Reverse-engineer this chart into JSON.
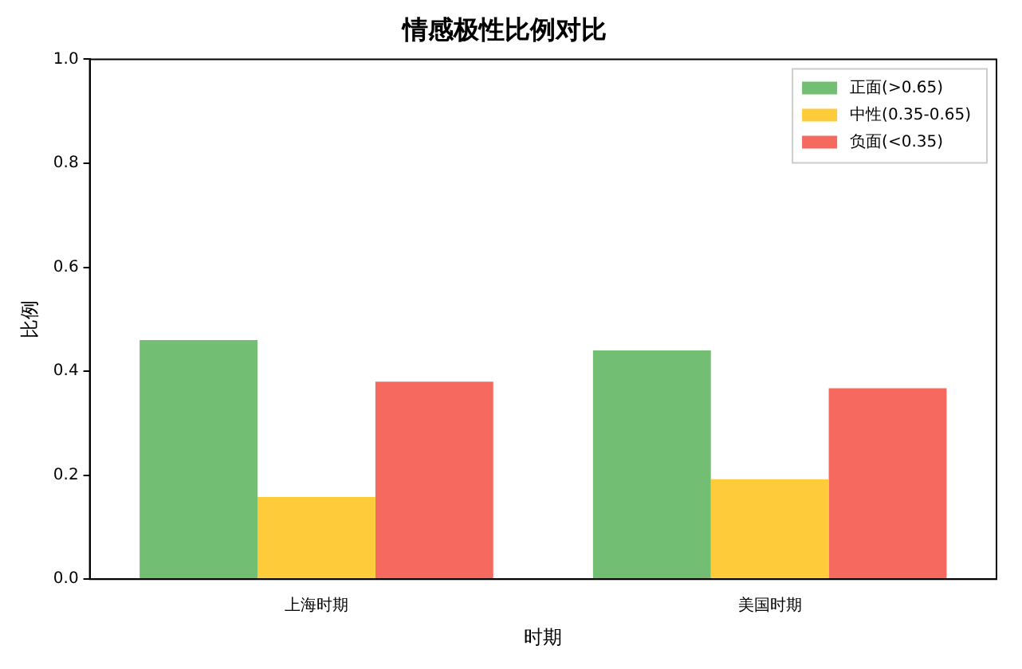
{
  "chart_data": {
    "type": "bar",
    "title": "情感极性比例对比",
    "xlabel": "时期",
    "ylabel": "比例",
    "categories": [
      "上海时期",
      "美国时期"
    ],
    "series": [
      {
        "name": "正面(>0.65)",
        "color": "#72bf73",
        "values": [
          0.46,
          0.44
        ]
      },
      {
        "name": "中性(0.35-0.65)",
        "color": "#fecc3a",
        "values": [
          0.158,
          0.192
        ]
      },
      {
        "name": "负面(<0.35)",
        "color": "#f5695e",
        "values": [
          0.38,
          0.367
        ]
      }
    ],
    "ylim": [
      0,
      1
    ],
    "yticks": [
      {
        "value": 0,
        "label": "0.0"
      },
      0.2,
      0.4,
      0.6,
      0.8,
      {
        "value": 1,
        "label": "1.0"
      }
    ],
    "grid": false,
    "legend": "top right"
  }
}
